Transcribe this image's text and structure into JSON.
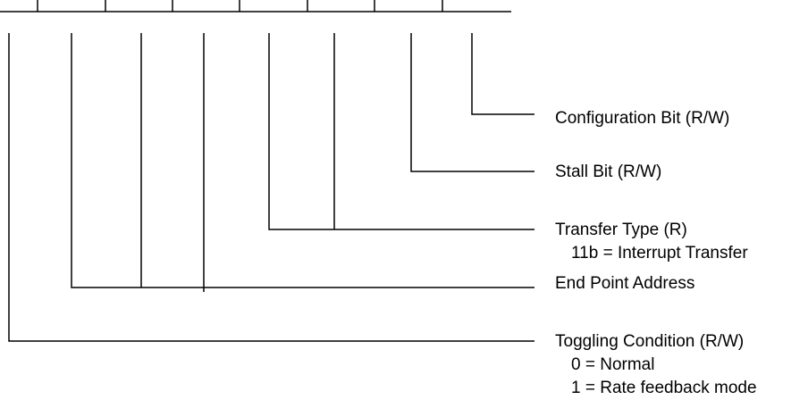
{
  "fields": {
    "config": {
      "label": "Configuration Bit (R/W)"
    },
    "stall": {
      "label": "Stall Bit (R/W)"
    },
    "transfer_type": {
      "label": "Transfer Type (R)",
      "detail": "11b = Interrupt Transfer"
    },
    "end_point": {
      "label": "End Point Address"
    },
    "toggle": {
      "label": "Toggling Condition (R/W)",
      "detail_1": "0 = Normal",
      "detail_2": "1 = Rate feedback mode"
    }
  }
}
